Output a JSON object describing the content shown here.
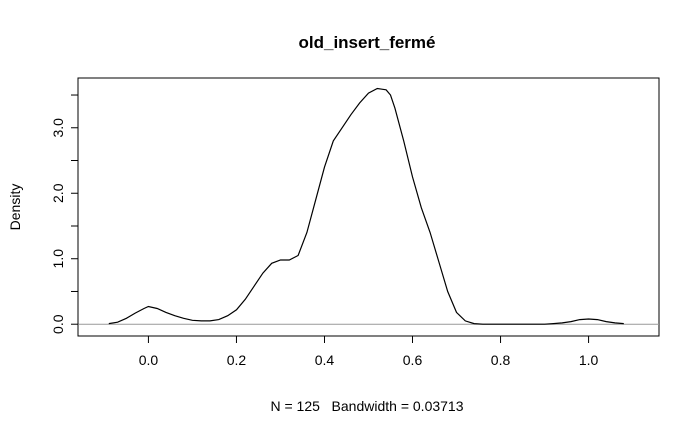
{
  "chart_data": {
    "type": "line",
    "title": "old_insert_fermé",
    "xlabel": "N = 125   Bandwidth = 0.03713",
    "ylabel": "Density",
    "xlim": [
      -0.16,
      1.16
    ],
    "ylim": [
      -0.18,
      3.76
    ],
    "x_ticks": [
      0.0,
      0.2,
      0.4,
      0.6,
      0.8,
      1.0
    ],
    "x_tick_labels": [
      "0.0",
      "0.2",
      "0.4",
      "0.6",
      "0.8",
      "1.0"
    ],
    "y_ticks": [
      0.0,
      0.5,
      1.0,
      1.5,
      2.0,
      2.5,
      3.0,
      3.5
    ],
    "y_tick_labels": [
      "0.0",
      "",
      "1.0",
      "",
      "2.0",
      "",
      "3.0",
      ""
    ],
    "zero_line": true,
    "grid": false,
    "series": [
      {
        "x": [
          -0.09,
          -0.07,
          -0.05,
          -0.03,
          -0.01,
          0.0,
          0.02,
          0.04,
          0.06,
          0.08,
          0.1,
          0.12,
          0.14,
          0.16,
          0.18,
          0.2,
          0.22,
          0.24,
          0.26,
          0.28,
          0.3,
          0.32,
          0.34,
          0.36,
          0.38,
          0.4,
          0.42,
          0.44,
          0.46,
          0.48,
          0.5,
          0.52,
          0.54,
          0.55,
          0.56,
          0.58,
          0.6,
          0.62,
          0.64,
          0.66,
          0.68,
          0.7,
          0.72,
          0.74,
          0.76,
          0.78,
          0.8,
          0.82,
          0.84,
          0.86,
          0.88,
          0.9,
          0.92,
          0.94,
          0.96,
          0.98,
          1.0,
          1.02,
          1.04,
          1.06,
          1.08
        ],
        "y": [
          0.01,
          0.03,
          0.09,
          0.17,
          0.24,
          0.27,
          0.24,
          0.18,
          0.13,
          0.09,
          0.06,
          0.05,
          0.05,
          0.07,
          0.13,
          0.22,
          0.38,
          0.58,
          0.78,
          0.93,
          0.98,
          0.98,
          1.05,
          1.4,
          1.9,
          2.4,
          2.8,
          3.0,
          3.2,
          3.38,
          3.53,
          3.6,
          3.58,
          3.5,
          3.3,
          2.8,
          2.25,
          1.78,
          1.4,
          0.95,
          0.5,
          0.18,
          0.05,
          0.01,
          0.0,
          0.0,
          0.0,
          0.0,
          0.0,
          0.0,
          0.0,
          0.0,
          0.01,
          0.02,
          0.04,
          0.07,
          0.08,
          0.07,
          0.04,
          0.02,
          0.01
        ]
      }
    ]
  }
}
